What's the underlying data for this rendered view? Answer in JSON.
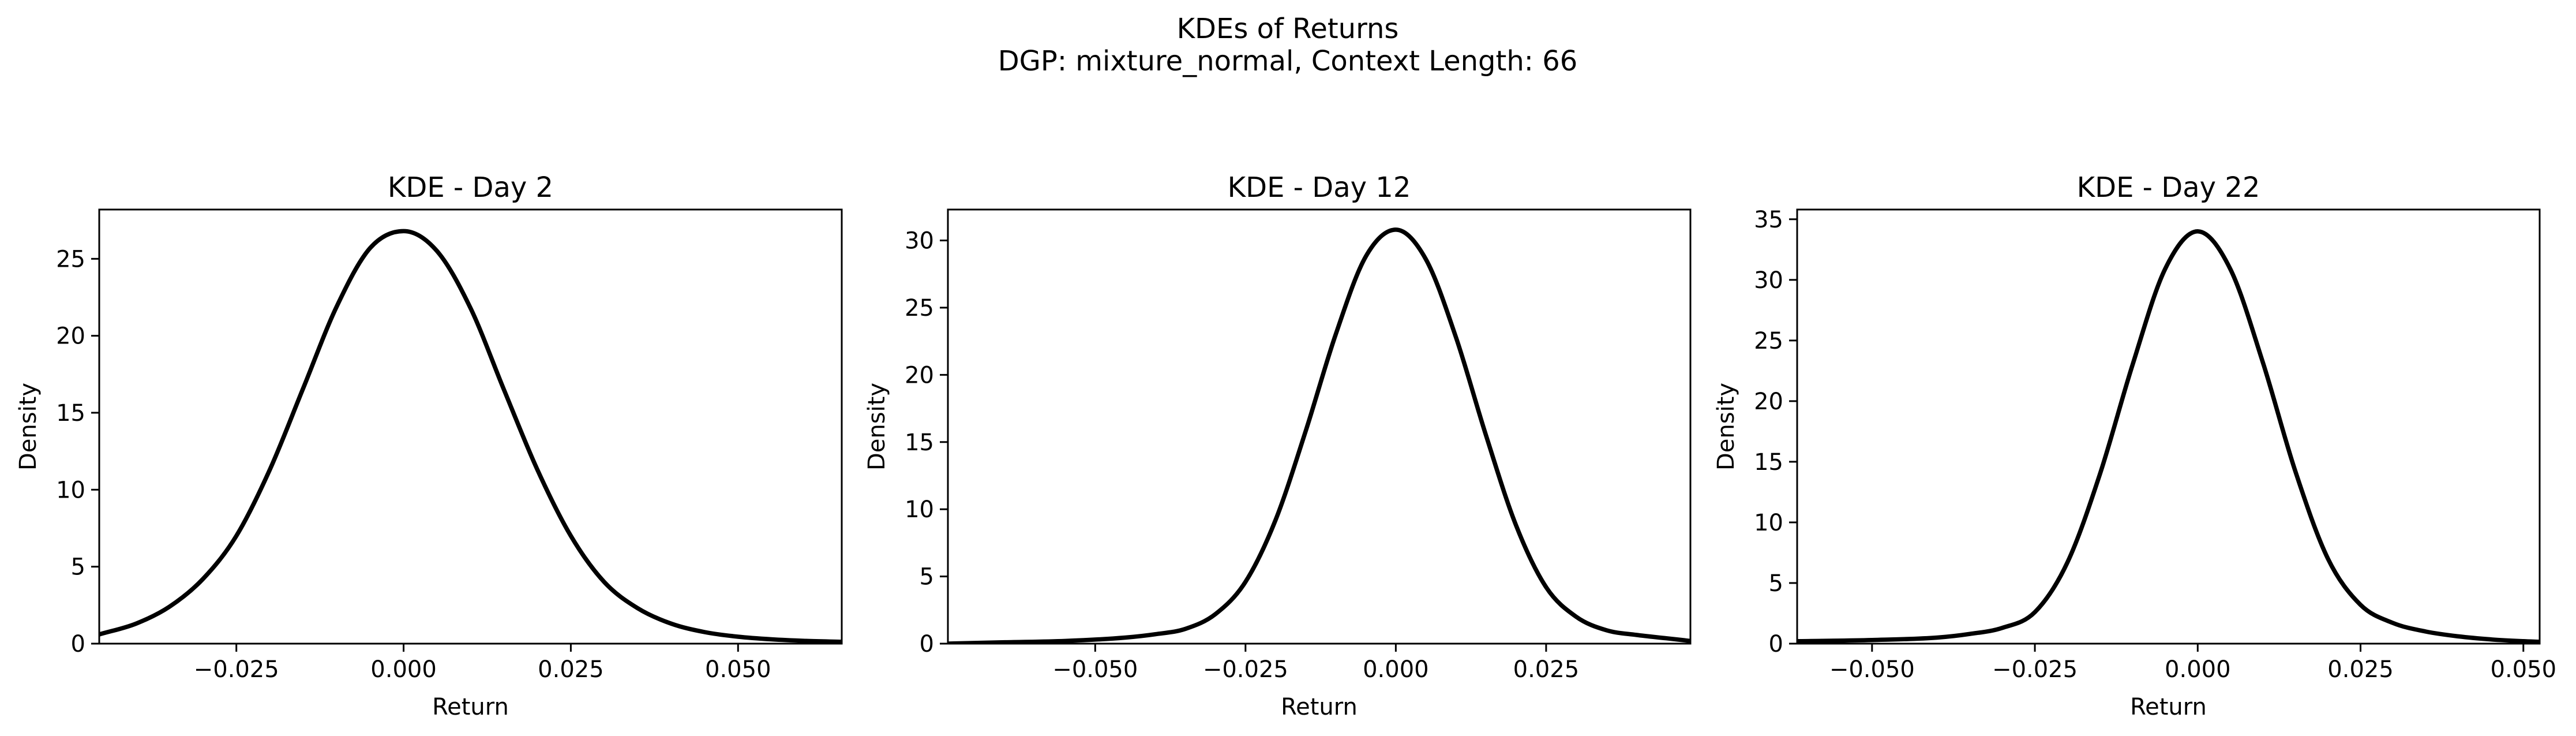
{
  "figure": {
    "title_line1": "KDEs of Returns",
    "title_line2": "DGP: mixture_normal, Context Length: 66"
  },
  "chart_data": [
    {
      "type": "line",
      "title": "KDE - Day 2",
      "xlabel": "Return",
      "ylabel": "Density",
      "xlim": [
        -0.0455,
        0.0655
      ],
      "ylim": [
        0,
        28.2
      ],
      "xticks": [
        -0.025,
        0.0,
        0.025,
        0.05
      ],
      "xtick_labels": [
        "−0.025",
        "0.000",
        "0.025",
        "0.050"
      ],
      "yticks": [
        0,
        5,
        10,
        15,
        20,
        25
      ],
      "ytick_labels": [
        "0",
        "5",
        "10",
        "15",
        "20",
        "25"
      ],
      "line_color": "#000000",
      "series": [
        {
          "x": [
            -0.0455,
            -0.04,
            -0.035,
            -0.03,
            -0.025,
            -0.02,
            -0.015,
            -0.01,
            -0.005,
            0.0,
            0.005,
            0.01,
            0.015,
            0.02,
            0.025,
            0.03,
            0.035,
            0.04,
            0.045,
            0.05,
            0.055,
            0.06,
            0.0655
          ],
          "y": [
            0.6,
            1.3,
            2.4,
            4.2,
            7.0,
            11.3,
            16.6,
            21.9,
            25.7,
            26.8,
            25.5,
            21.8,
            16.5,
            11.3,
            7.0,
            4.0,
            2.3,
            1.3,
            0.75,
            0.45,
            0.28,
            0.18,
            0.12
          ]
        }
      ]
    },
    {
      "type": "line",
      "title": "KDE - Day 12",
      "xlabel": "Return",
      "ylabel": "Density",
      "xlim": [
        -0.0745,
        0.049
      ],
      "ylim": [
        0,
        32.3
      ],
      "xticks": [
        -0.05,
        -0.025,
        0.0,
        0.025
      ],
      "xtick_labels": [
        "−0.050",
        "−0.025",
        "0.000",
        "0.025"
      ],
      "yticks": [
        0,
        5,
        10,
        15,
        20,
        25,
        30
      ],
      "ytick_labels": [
        "0",
        "5",
        "10",
        "15",
        "20",
        "25",
        "30"
      ],
      "line_color": "#000000",
      "series": [
        {
          "x": [
            -0.0745,
            -0.065,
            -0.055,
            -0.045,
            -0.04,
            -0.035,
            -0.03,
            -0.025,
            -0.02,
            -0.015,
            -0.01,
            -0.005,
            0.0,
            0.005,
            0.01,
            0.015,
            0.02,
            0.025,
            0.03,
            0.035,
            0.04,
            0.045,
            0.049
          ],
          "y": [
            0.0,
            0.1,
            0.2,
            0.45,
            0.7,
            1.1,
            2.2,
            4.6,
            9.2,
            15.8,
            23.0,
            28.8,
            30.8,
            28.6,
            22.8,
            15.5,
            8.8,
            4.2,
            2.0,
            1.0,
            0.65,
            0.4,
            0.2
          ]
        }
      ]
    },
    {
      "type": "line",
      "title": "KDE - Day 22",
      "xlabel": "Return",
      "ylabel": "Density",
      "xlim": [
        -0.0615,
        0.0525
      ],
      "ylim": [
        0,
        35.8
      ],
      "xticks": [
        -0.05,
        -0.025,
        0.0,
        0.025,
        0.05
      ],
      "xtick_labels": [
        "−0.050",
        "−0.025",
        "0.000",
        "0.025",
        "0.050"
      ],
      "yticks": [
        0,
        5,
        10,
        15,
        20,
        25,
        30,
        35
      ],
      "ytick_labels": [
        "0",
        "5",
        "10",
        "15",
        "20",
        "25",
        "30",
        "35"
      ],
      "line_color": "#000000",
      "series": [
        {
          "x": [
            -0.0615,
            -0.05,
            -0.04,
            -0.035,
            -0.03,
            -0.025,
            -0.02,
            -0.015,
            -0.01,
            -0.005,
            0.0,
            0.005,
            0.01,
            0.015,
            0.02,
            0.025,
            0.03,
            0.035,
            0.04,
            0.045,
            0.05,
            0.0525
          ],
          "y": [
            0.2,
            0.3,
            0.5,
            0.8,
            1.3,
            2.6,
            6.7,
            14.0,
            23.0,
            30.9,
            34.0,
            30.9,
            23.2,
            14.2,
            7.0,
            3.2,
            1.7,
            1.0,
            0.6,
            0.35,
            0.2,
            0.15
          ]
        }
      ]
    }
  ]
}
